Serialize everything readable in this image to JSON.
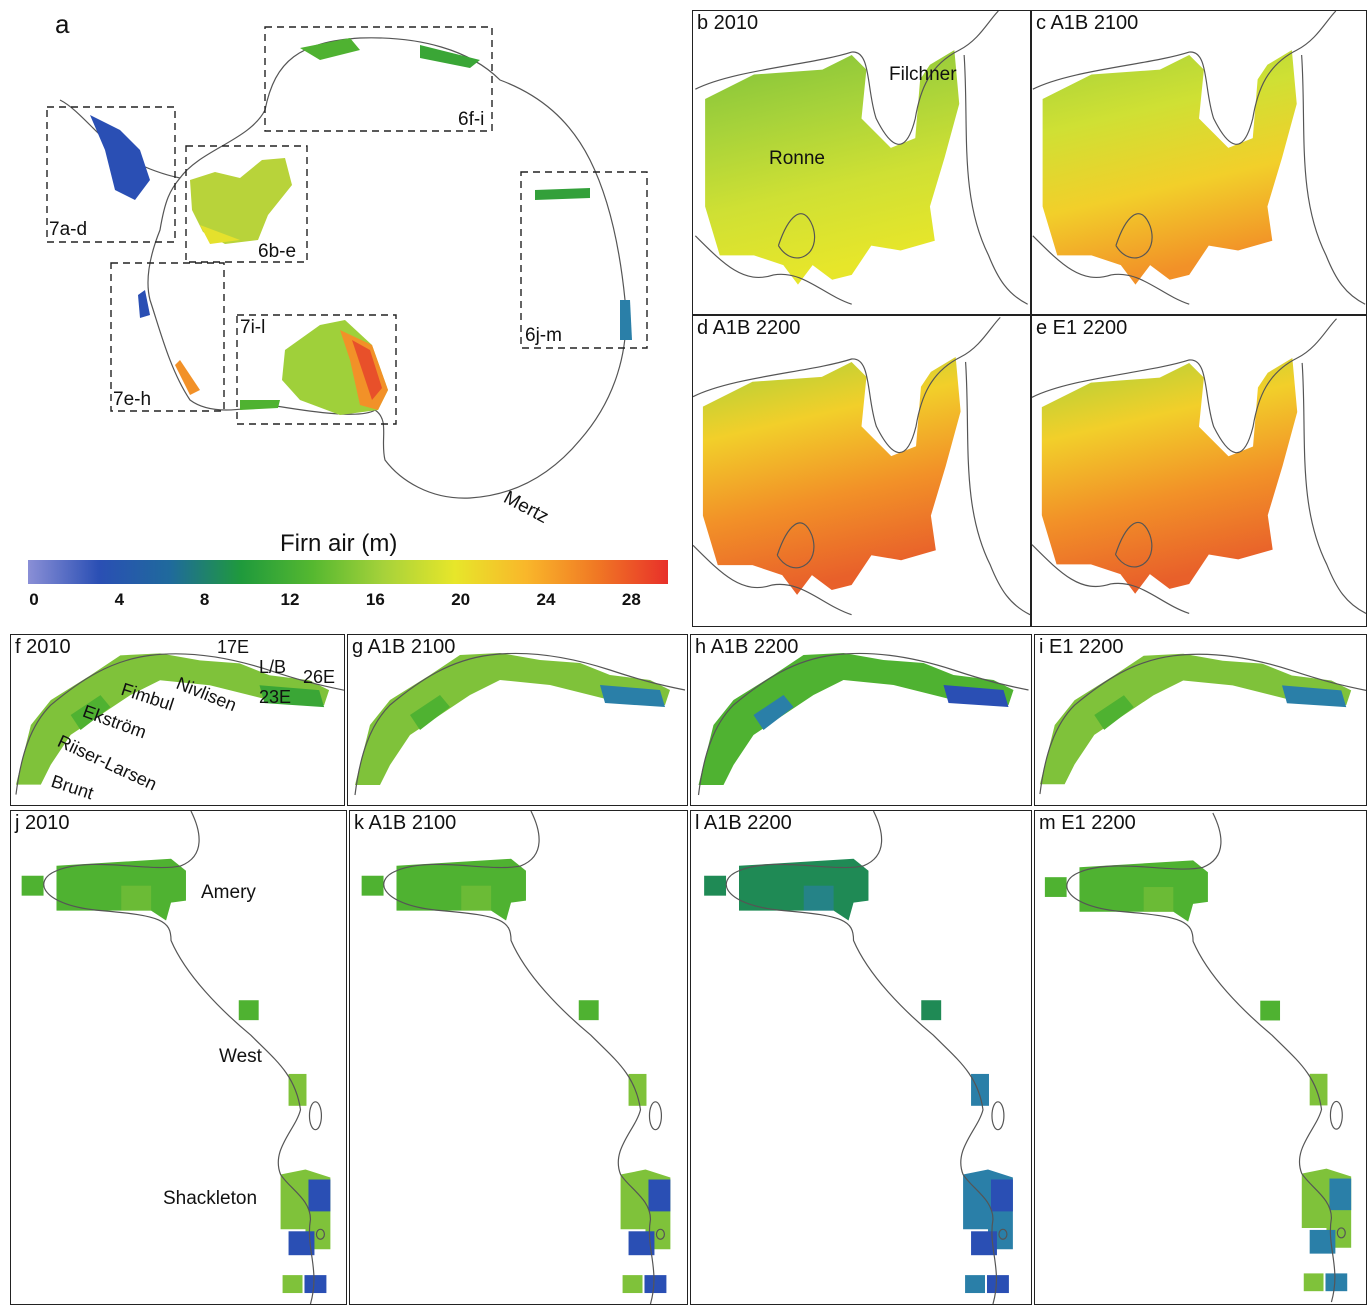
{
  "colorbar": {
    "title": "Firn air (m)",
    "ticks": [
      "0",
      "4",
      "8",
      "12",
      "16",
      "20",
      "24",
      "28"
    ],
    "tick_values": [
      0,
      4,
      8,
      12,
      16,
      20,
      24,
      28
    ],
    "range": [
      0,
      30
    ],
    "colors": [
      "#8a8fd6",
      "#2a4fb4",
      "#1f6a9c",
      "#1f9a3c",
      "#55b830",
      "#a6d23a",
      "#e7e62a",
      "#f9b72a",
      "#f07824",
      "#e8302a"
    ]
  },
  "overview": {
    "label": "a",
    "boxes": [
      "7a-d",
      "6b-e",
      "6f-i",
      "7e-h",
      "7i-l",
      "6j-m"
    ],
    "places": [
      "Mertz"
    ]
  },
  "weddell": {
    "panels": [
      "b 2010",
      "c A1B 2100",
      "d A1B 2200",
      "e E1 2200"
    ],
    "shelves": [
      "Ronne",
      "Filchner"
    ]
  },
  "dml": {
    "panels": [
      "f 2010",
      "g A1B 2100",
      "h A1B 2200",
      "i E1 2200"
    ],
    "shelves": [
      "Brunt",
      "Riiser-Larsen",
      "Ekström",
      "Fimbul",
      "Nivlisen",
      "17E",
      "L/B",
      "26E",
      "23E"
    ]
  },
  "east": {
    "panels": [
      "j 2010",
      "k A1B 2100",
      "l A1B 2200",
      "m E1 2200"
    ],
    "shelves": [
      "Amery",
      "West",
      "Shackleton"
    ]
  }
}
